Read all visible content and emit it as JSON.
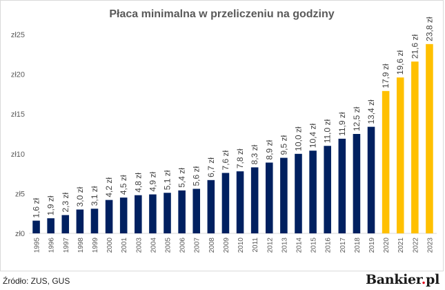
{
  "chart_data": {
    "type": "bar",
    "title": "Płaca minimalna w przeliczeniu na godziny",
    "categories": [
      "1995",
      "1996",
      "1997",
      "1998",
      "1999",
      "2000",
      "2001",
      "2003",
      "2004",
      "2005",
      "2006",
      "2007",
      "2008",
      "2009",
      "2010",
      "2011",
      "2012",
      "2013",
      "2014",
      "2015",
      "2016",
      "2017",
      "2018",
      "2019",
      "2020",
      "2021",
      "2022",
      "2023"
    ],
    "values": [
      1.6,
      1.9,
      2.3,
      3.0,
      3.1,
      4.2,
      4.5,
      4.8,
      4.9,
      5.1,
      5.4,
      5.6,
      6.7,
      7.6,
      7.8,
      8.3,
      8.9,
      9.5,
      10.0,
      10.4,
      11.0,
      11.9,
      12.5,
      13.4,
      17.9,
      19.6,
      21.6,
      23.8
    ],
    "data_labels": [
      "1,6 zł",
      "1,9 zł",
      "2,3 zł",
      "3,0 zł",
      "3,1 zł",
      "4,2 zł",
      "4,5 zł",
      "4,8 zł",
      "4,9 zł",
      "5,1 zł",
      "5,4 zł",
      "5,6 zł",
      "6,7 zł",
      "7,6 zł",
      "7,8 zł",
      "8,3 zł",
      "8,9 zł",
      "9,5 zł",
      "10,0 zł",
      "10,4 zł",
      "11,0 zł",
      "11,9 zł",
      "12,5 zł",
      "13,4 zł",
      "17,9 zł",
      "19,6 zł",
      "21,6 zł",
      "23,8 zł"
    ],
    "highlight_from_index": 24,
    "colors": {
      "base": "#002060",
      "highlight": "#ffc000"
    },
    "ylim": [
      0,
      25
    ],
    "yticks": [
      0,
      5,
      10,
      15,
      20,
      25
    ],
    "ytick_labels": [
      "zł0",
      "zł5",
      "zł10",
      "zł15",
      "zł20",
      "zł25"
    ],
    "xlabel": "",
    "ylabel": "",
    "grid": false,
    "legend": "none"
  },
  "footer": {
    "source": "Źródło: ZUS, GUS",
    "brand_name": "Bankier",
    "brand_dot": ".",
    "brand_suffix": "pl"
  }
}
